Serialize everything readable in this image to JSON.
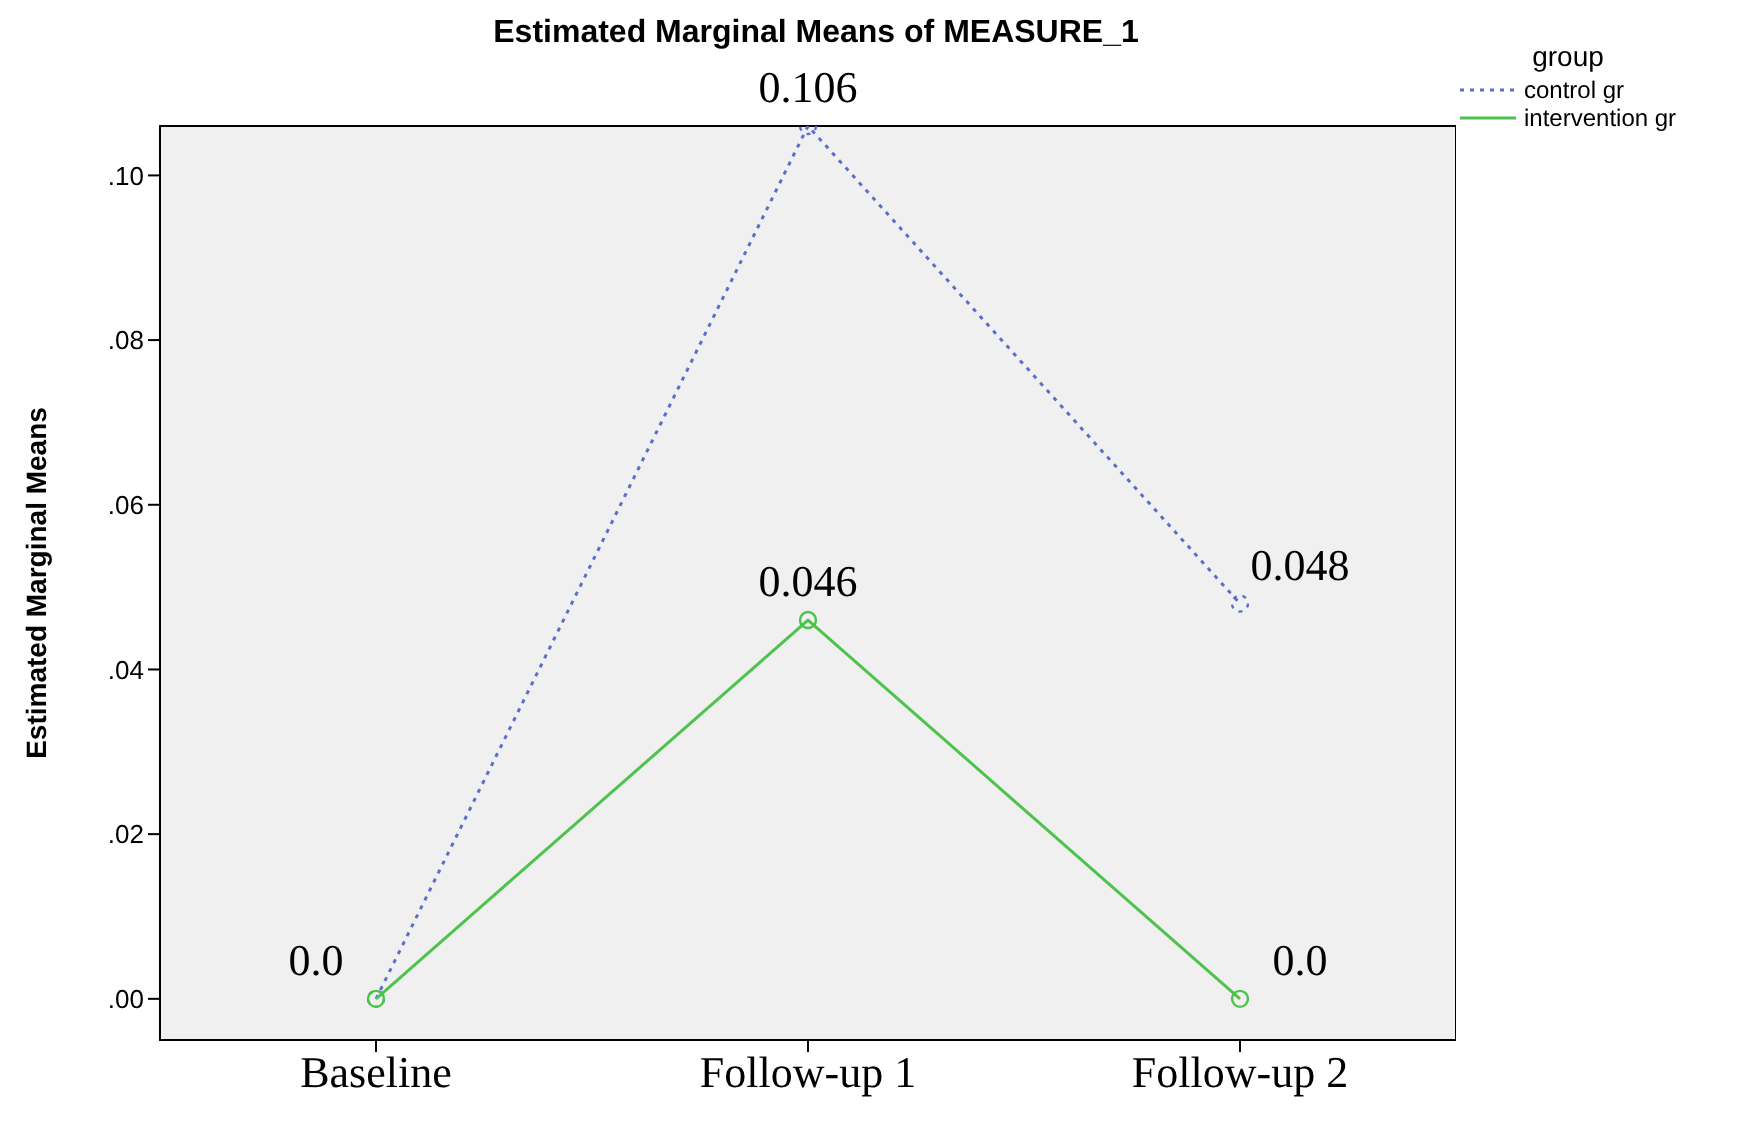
{
  "chart_data": {
    "type": "line",
    "title": "Estimated Marginal Means of MEASURE_1",
    "ylabel": "Estimated Marginal Means",
    "legend_title": "group",
    "categories": [
      "Baseline",
      "Follow-up 1",
      "Follow-up 2"
    ],
    "series": [
      {
        "name": "control gr",
        "color": "#5b6fc9",
        "line_style": "dotted",
        "values": [
          0,
          0.106,
          0.048
        ],
        "value_labels": [
          null,
          "0.106",
          "0.048"
        ]
      },
      {
        "name": "intervention gr",
        "color": "#4cc44c",
        "line_style": "solid",
        "values": [
          0,
          0.046,
          0
        ],
        "value_labels": [
          "0.0",
          "0.046",
          "0.0"
        ]
      }
    ],
    "ylim": [
      -0.005,
      0.106
    ],
    "yticks": [
      {
        "value": 0,
        "label": ".00"
      },
      {
        "value": 0.02,
        "label": ".02"
      },
      {
        "value": 0.04,
        "label": ".04"
      },
      {
        "value": 0.06,
        "label": ".06"
      },
      {
        "value": 0.08,
        "label": ".08"
      },
      {
        "value": 0.1,
        "label": ".10"
      }
    ],
    "legend": "top right",
    "marker": "circle"
  }
}
